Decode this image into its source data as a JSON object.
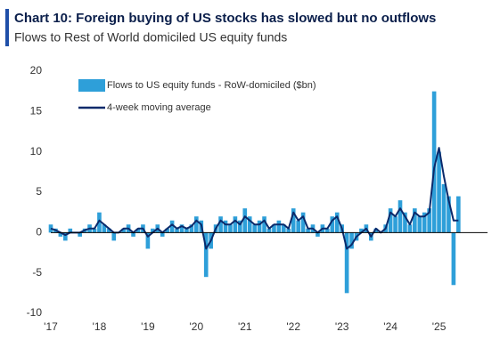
{
  "chart_data": {
    "type": "bar_line",
    "title": "Chart 10: Foreign buying of US stocks has slowed but no outflows",
    "subtitle": "Flows to Rest of World domiciled US equity funds",
    "x": [
      2017.0,
      2017.1,
      2017.2,
      2017.3,
      2017.4,
      2017.5,
      2017.6,
      2017.7,
      2017.8,
      2017.9,
      2018.0,
      2018.1,
      2018.2,
      2018.3,
      2018.4,
      2018.5,
      2018.6,
      2018.7,
      2018.8,
      2018.9,
      2019.0,
      2019.1,
      2019.2,
      2019.3,
      2019.4,
      2019.5,
      2019.6,
      2019.7,
      2019.8,
      2019.9,
      2020.0,
      2020.1,
      2020.2,
      2020.3,
      2020.4,
      2020.5,
      2020.6,
      2020.7,
      2020.8,
      2020.9,
      2021.0,
      2021.1,
      2021.2,
      2021.3,
      2021.4,
      2021.5,
      2021.6,
      2021.7,
      2021.8,
      2021.9,
      2022.0,
      2022.1,
      2022.2,
      2022.3,
      2022.4,
      2022.5,
      2022.6,
      2022.7,
      2022.8,
      2022.9,
      2023.0,
      2023.1,
      2023.2,
      2023.3,
      2023.4,
      2023.5,
      2023.6,
      2023.7,
      2023.8,
      2023.9,
      2024.0,
      2024.1,
      2024.2,
      2024.3,
      2024.4,
      2024.5,
      2024.6,
      2024.7,
      2024.8,
      2024.9,
      2025.0,
      2025.1,
      2025.2,
      2025.3,
      2025.4
    ],
    "series": [
      {
        "name": "Flows to US equity funds - RoW-domiciled ($bn)",
        "color": "#2e9fd9",
        "kind": "bar",
        "values": [
          1,
          0.5,
          -0.5,
          -1,
          0.5,
          0,
          -0.5,
          0.5,
          1,
          0.5,
          2.5,
          1,
          0.5,
          -1,
          0,
          0.5,
          1,
          -0.5,
          0.5,
          1,
          -2,
          0.5,
          1,
          -0.5,
          0.5,
          1.5,
          0.5,
          1,
          0.5,
          1,
          2,
          1.5,
          -5.5,
          -2,
          1,
          2,
          1.5,
          1,
          2,
          1.5,
          3,
          2,
          1,
          1.5,
          2,
          0.5,
          1,
          1.5,
          1,
          0.5,
          3,
          1.5,
          2.5,
          0.5,
          1,
          -0.5,
          1,
          0.5,
          2,
          2.5,
          1,
          -7.5,
          -2,
          -1,
          0.5,
          1,
          -1,
          0.5,
          0,
          1,
          3,
          2,
          4,
          2.5,
          1,
          3,
          2,
          2.5,
          3,
          17.5,
          10,
          6,
          4.5,
          -6.5,
          4.5
        ]
      },
      {
        "name": "4-week moving average",
        "color": "#0b2a6b",
        "kind": "line",
        "values": [
          0.5,
          0.3,
          0,
          -0.3,
          0,
          0,
          0,
          0.3,
          0.5,
          0.5,
          1.5,
          1,
          0.5,
          0,
          0,
          0.5,
          0.5,
          0,
          0.5,
          0.5,
          -0.5,
          0,
          0.5,
          0,
          0.5,
          1,
          0.5,
          0.8,
          0.5,
          0.8,
          1.5,
          1,
          -2,
          -1,
          0.5,
          1.5,
          1,
          1,
          1.5,
          1,
          2,
          1.5,
          1,
          1,
          1.5,
          0.5,
          1,
          1,
          1,
          0.5,
          2.5,
          1.5,
          2,
          0.5,
          0.5,
          0,
          0.5,
          0.5,
          1.5,
          2,
          0.5,
          -2,
          -1.5,
          -0.5,
          0,
          0.5,
          -0.5,
          0.5,
          0,
          0.5,
          2.5,
          2,
          3,
          2,
          1,
          2.5,
          2,
          2,
          2.5,
          8,
          10.5,
          7,
          4,
          1.5,
          1.5
        ]
      }
    ],
    "xlim": [
      2017,
      2026
    ],
    "xticks": [
      {
        "value": 2017,
        "label": "'17"
      },
      {
        "value": 2018,
        "label": "'18"
      },
      {
        "value": 2019,
        "label": "'19"
      },
      {
        "value": 2020,
        "label": "'20"
      },
      {
        "value": 2021,
        "label": "'21"
      },
      {
        "value": 2022,
        "label": "'22"
      },
      {
        "value": 2023,
        "label": "'23"
      },
      {
        "value": 2024,
        "label": "'24"
      },
      {
        "value": 2025,
        "label": "'25"
      }
    ],
    "ylim": [
      -10,
      20
    ],
    "yticks": [
      20,
      15,
      10,
      5,
      0,
      -5,
      -10
    ],
    "legend": "upper left"
  }
}
